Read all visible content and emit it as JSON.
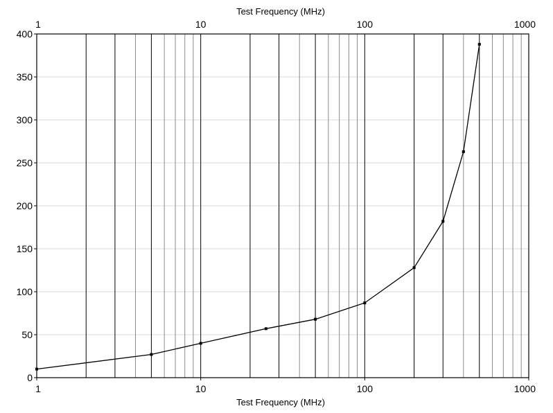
{
  "chart_data": {
    "type": "line",
    "xlabel": "Test Frequency (MHz)",
    "xlabel_top": "Test Frequency (MHz)",
    "x_scale": "log",
    "xlim": [
      1,
      1000
    ],
    "ylim": [
      0,
      400
    ],
    "x_ticks": [
      1,
      10,
      100,
      1000
    ],
    "x_tick_labels": [
      "1",
      "10",
      "100",
      "1000"
    ],
    "x_tick_labels_top": [
      "1",
      "10",
      "100",
      "1000"
    ],
    "y_ticks": [
      0,
      50,
      100,
      150,
      200,
      250,
      300,
      350,
      400
    ],
    "y_tick_labels": [
      "0",
      "50",
      "100",
      "150",
      "200",
      "250",
      "300",
      "350",
      "400"
    ],
    "vertical_grid": true,
    "horizontal_grid": true,
    "series": [
      {
        "x": [
          1,
          5,
          10,
          25,
          50,
          100,
          200,
          300,
          400,
          500
        ],
        "y": [
          10,
          27,
          40,
          57,
          68,
          87,
          128,
          182,
          263,
          388
        ]
      }
    ],
    "colors": {
      "line": "#000000",
      "major_grid": "#000000",
      "minor_grid": "#8a8a8a",
      "horizontal_grid": "#d8d8d8",
      "frame": "#000000"
    }
  }
}
